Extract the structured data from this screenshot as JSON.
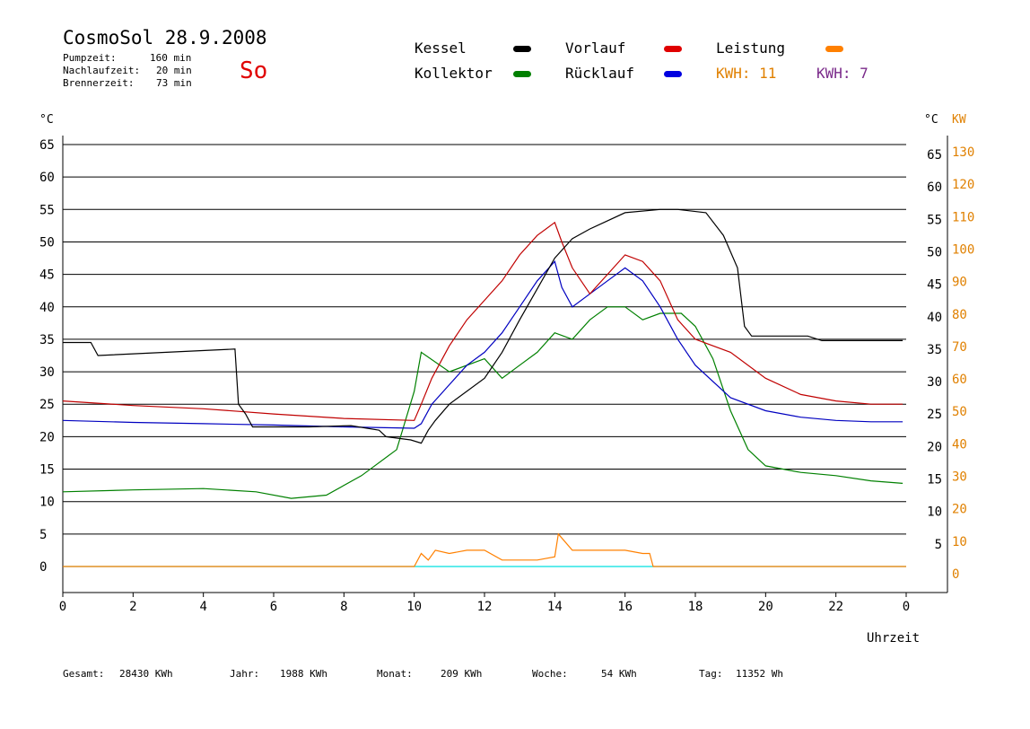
{
  "header": {
    "title": "CosmoSol 28.9.2008",
    "weekday": "So",
    "stats": [
      {
        "label": "Pumpzeit:",
        "value": "160 min"
      },
      {
        "label": "Nachlaufzeit:",
        "value": "20 min"
      },
      {
        "label": "Brennerzeit:",
        "value": "73 min"
      }
    ]
  },
  "legend": {
    "kessel": "Kessel",
    "kollektor": "Kollektor",
    "vorlauf": "Vorlauf",
    "ruecklauf": "Rücklauf",
    "leistung": "Leistung",
    "kwh1": "KWH: 11",
    "kwh2": "KWH: 7"
  },
  "footer": [
    {
      "label": "Gesamt:",
      "value": "28430 KWh"
    },
    {
      "label": "Jahr:",
      "value": "1988 KWh"
    },
    {
      "label": "Monat:",
      "value": "209 KWh"
    },
    {
      "label": "Woche:",
      "value": "54 KWh"
    },
    {
      "label": "Tag:",
      "value": "11352 Wh"
    }
  ],
  "colors": {
    "kessel": "#000000",
    "kollektor": "#008000",
    "vorlauf": "#c00000",
    "ruecklauf": "#0000c0",
    "leistung": "#ff8000",
    "purple": "#7a2a8a",
    "cyan": "#00e0e0",
    "so": "#e00000"
  },
  "chart_data": {
    "type": "line",
    "xlabel": "Uhrzeit",
    "ylabel_left": "°C",
    "ylabel_right_1": "°C",
    "ylabel_right_2": "KW",
    "xlim": [
      0,
      24
    ],
    "ylim": [
      0,
      65
    ],
    "y2lim": [
      0,
      130
    ],
    "x_ticks": [
      "0",
      "2",
      "4",
      "6",
      "8",
      "10",
      "12",
      "14",
      "16",
      "18",
      "20",
      "22",
      "0"
    ],
    "y_ticks": [
      "0",
      "5",
      "10",
      "15",
      "20",
      "25",
      "30",
      "35",
      "40",
      "45",
      "50",
      "55",
      "60",
      "65"
    ],
    "y2_ticks": [
      "0",
      "10",
      "20",
      "30",
      "40",
      "50",
      "60",
      "70",
      "80",
      "90",
      "100",
      "110",
      "120",
      "130"
    ],
    "grid": "horizontal",
    "series": [
      {
        "name": "Kessel",
        "x": [
          0,
          0.8,
          1,
          4.9,
          5,
          5.2,
          5.4,
          7,
          8.2,
          9,
          9.2,
          9.9,
          10.2,
          10.4,
          10.6,
          11,
          12,
          12.5,
          13,
          14,
          14.5,
          15,
          16,
          17,
          17.5,
          18.3,
          18.8,
          19.2,
          19.4,
          19.6,
          20,
          21.2,
          21.6,
          23.9
        ],
        "y": [
          34.5,
          34.5,
          32.5,
          33.5,
          25,
          23.5,
          21.5,
          21.5,
          21.7,
          21,
          20,
          19.5,
          19,
          21,
          22.5,
          25,
          29,
          33,
          38,
          47.5,
          50.5,
          52,
          54.5,
          55,
          55,
          54.5,
          51,
          46,
          37,
          35.5,
          35.5,
          35.5,
          34.8,
          34.8
        ]
      },
      {
        "name": "Vorlauf",
        "x": [
          0,
          2,
          4,
          6,
          8,
          10,
          10.2,
          10.5,
          11,
          11.5,
          12,
          12.5,
          13,
          13.5,
          14,
          14.2,
          14.5,
          15,
          15.5,
          16,
          16.5,
          17,
          17.5,
          18,
          19,
          20,
          21,
          22,
          23,
          23.9
        ],
        "y": [
          25.5,
          24.8,
          24.3,
          23.5,
          22.8,
          22.5,
          25,
          29,
          34,
          38,
          41,
          44,
          48,
          51,
          53,
          50,
          46,
          42,
          45,
          48,
          47,
          44,
          38,
          35,
          33,
          29,
          26.5,
          25.5,
          25,
          25
        ]
      },
      {
        "name": "Rücklauf",
        "x": [
          0,
          2,
          4,
          6,
          8,
          10,
          10.2,
          10.5,
          11,
          11.5,
          12,
          12.5,
          13,
          13.5,
          14,
          14.2,
          14.5,
          15,
          15.5,
          16,
          16.5,
          17,
          17.5,
          18,
          19,
          20,
          21,
          22,
          23,
          23.9
        ],
        "y": [
          22.5,
          22.2,
          22,
          21.8,
          21.5,
          21.3,
          22,
          25,
          28,
          31,
          33,
          36,
          40,
          44,
          47,
          43,
          40,
          42,
          44,
          46,
          44,
          40,
          35,
          31,
          26,
          24,
          23,
          22.5,
          22.3,
          22.3
        ]
      },
      {
        "name": "Kollektor",
        "x": [
          0,
          2,
          4,
          5.5,
          6.5,
          7.5,
          8.5,
          9.5,
          10,
          10.2,
          11,
          12,
          12.5,
          13,
          13.5,
          14,
          14.5,
          15,
          15.5,
          16,
          16.5,
          17,
          17.3,
          17.6,
          18,
          18.5,
          19,
          19.5,
          20,
          21,
          22,
          23,
          23.9
        ],
        "y": [
          11.5,
          11.8,
          12,
          11.5,
          10.5,
          11,
          14,
          18,
          27,
          33,
          30,
          32,
          29,
          31,
          33,
          36,
          35,
          38,
          40,
          40,
          38,
          39,
          39,
          39,
          37,
          32,
          24,
          18,
          15.5,
          14.5,
          14,
          13.2,
          12.8
        ]
      },
      {
        "name": "Leistung",
        "x": [
          0,
          10,
          10.2,
          10.4,
          10.6,
          11,
          11.5,
          12,
          12.5,
          13,
          13.5,
          14,
          14.1,
          14.5,
          15,
          15.5,
          16,
          16.5,
          16.7,
          16.8,
          24
        ],
        "y2": [
          0,
          0,
          4,
          2,
          5,
          4,
          5,
          5,
          2,
          2,
          2,
          3,
          10,
          5,
          5,
          5,
          5,
          4,
          4,
          0,
          0
        ]
      }
    ]
  }
}
